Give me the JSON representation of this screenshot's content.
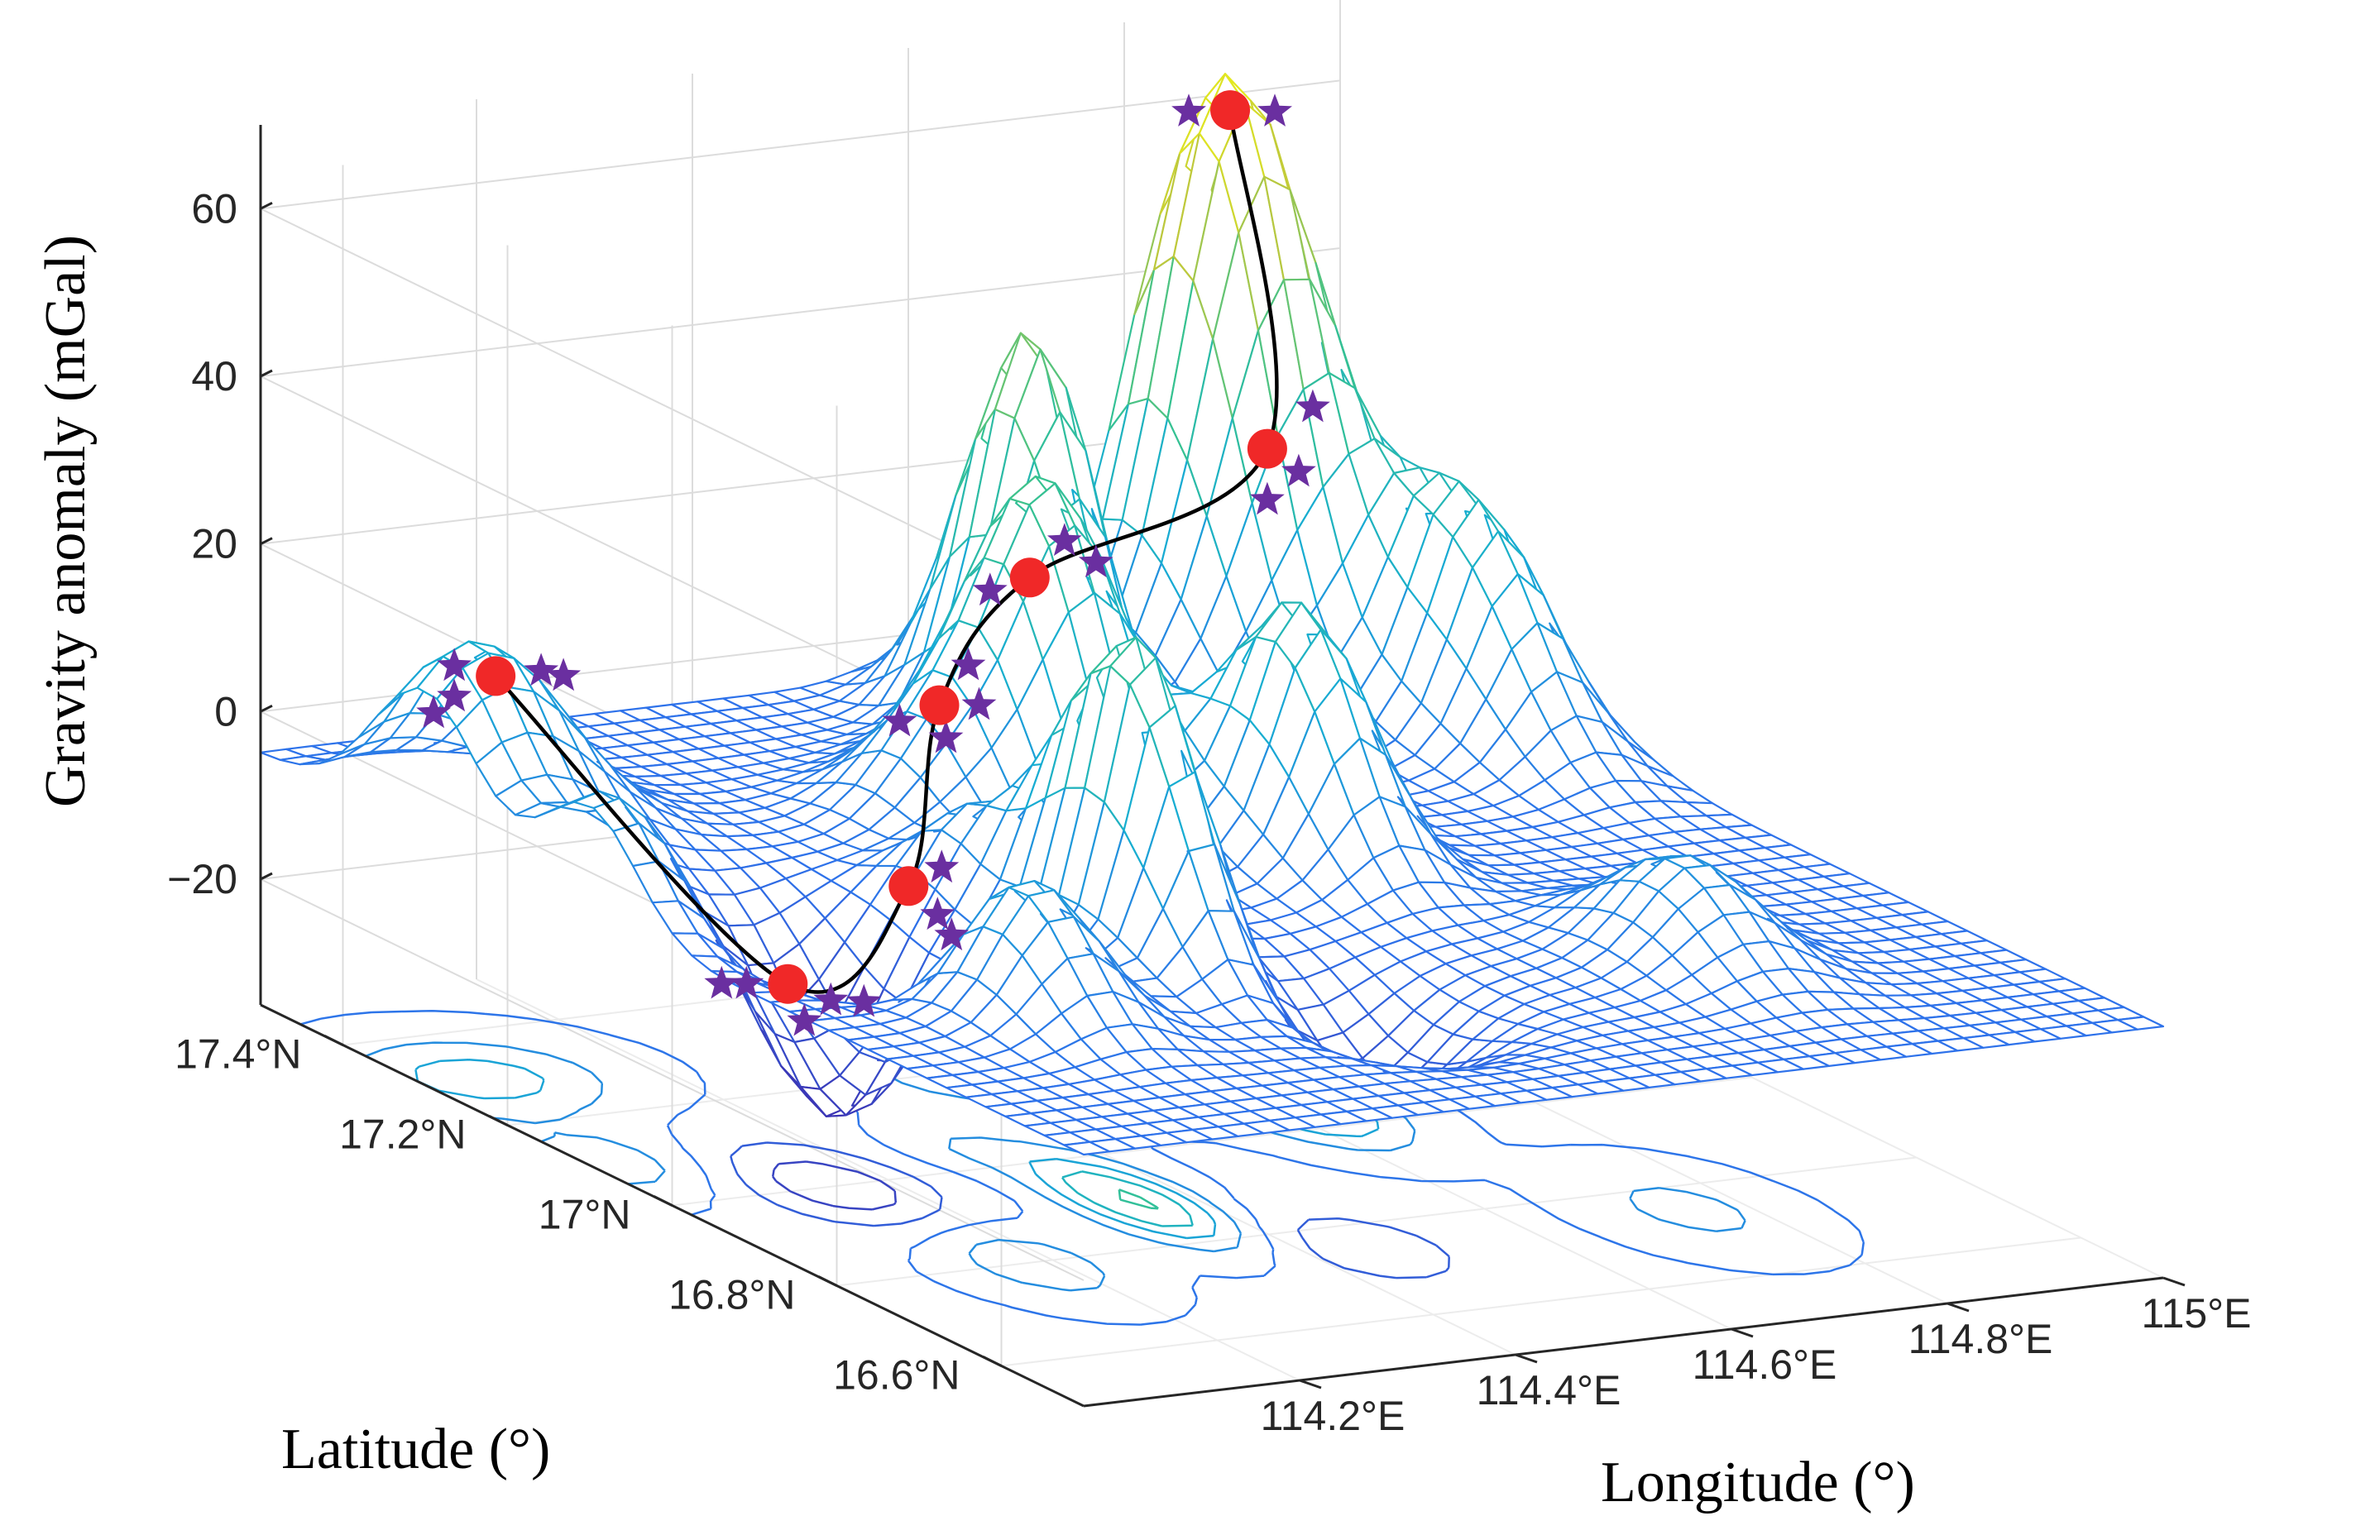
{
  "chart_data": {
    "type": "surface3d",
    "title": "",
    "xlabel": "Longitude (°)",
    "ylabel": "Latitude (°)",
    "zlabel": "Gravity anomaly (mGal)",
    "z_ticks": [
      "60",
      "40",
      "20",
      "0",
      "−20"
    ],
    "z_tick_values": [
      60,
      40,
      20,
      0,
      -20
    ],
    "lon_ticks": [
      "114.2°E",
      "114.4°E",
      "114.6°E",
      "114.8°E",
      "115°E"
    ],
    "lon_tick_values": [
      114.2,
      114.4,
      114.6,
      114.8,
      115.0
    ],
    "lat_ticks": [
      "17.4°N",
      "17.2°N",
      "17°N",
      "16.8°N",
      "16.6°N"
    ],
    "lat_tick_values": [
      17.4,
      17.2,
      17.0,
      16.8,
      16.6
    ],
    "xlim": [
      114.0,
      115.0
    ],
    "ylim": [
      16.5,
      17.5
    ],
    "zlim": [
      -35,
      70
    ],
    "grid": "on",
    "colormap": "parula",
    "colors": {
      "survey_points": "#f02828",
      "neighbor_stars": "#6a2fa0",
      "profile_line": "#000000",
      "grid_lines": "#dcdcdc",
      "axis": "#262626"
    },
    "profile_points": [
      {
        "lon": 114.05,
        "lat": 17.28,
        "z": 14
      },
      {
        "lon": 114.13,
        "lat": 17.03,
        "z": -12
      },
      {
        "lon": 114.28,
        "lat": 17.08,
        "z": -5
      },
      {
        "lon": 114.4,
        "lat": 17.2,
        "z": 9
      },
      {
        "lon": 114.56,
        "lat": 17.3,
        "z": 17
      },
      {
        "lon": 114.78,
        "lat": 17.3,
        "z": 29
      },
      {
        "lon": 114.86,
        "lat": 17.45,
        "z": 61
      }
    ],
    "series": [
      {
        "name": "Gravity anomaly surface",
        "kind": "mesh"
      },
      {
        "name": "Contours",
        "kind": "contour"
      },
      {
        "name": "Survey points",
        "kind": "marker"
      },
      {
        "name": "Neighbor points",
        "kind": "marker"
      },
      {
        "name": "Profile",
        "kind": "line"
      }
    ]
  }
}
